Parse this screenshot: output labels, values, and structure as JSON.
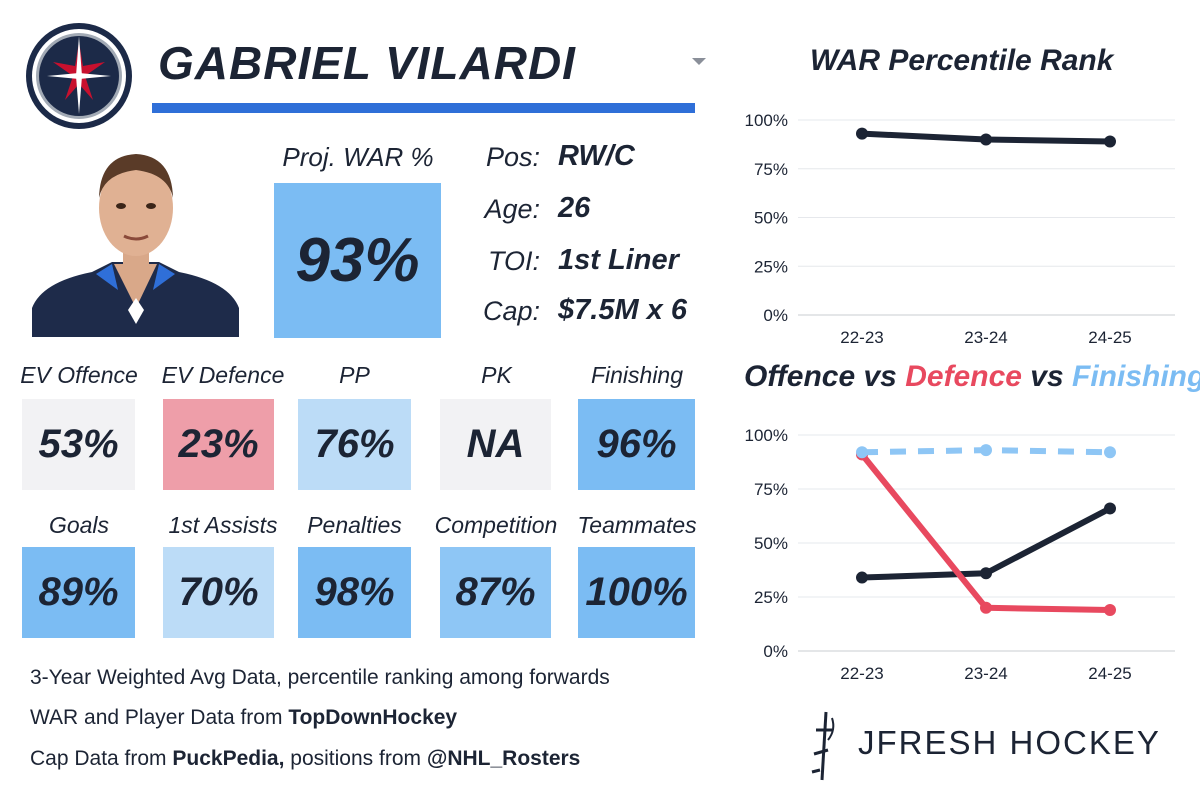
{
  "player": {
    "name": "GABRIEL VILARDI",
    "team_colors": {
      "navy": "#1c2a48",
      "blue": "#2f6fd8",
      "red": "#c8102e",
      "silver": "#a2aab5"
    }
  },
  "proj_war": {
    "label": "Proj. WAR %",
    "value": "93%",
    "color": "#7bbcf3"
  },
  "info": [
    {
      "label": "Pos:",
      "value": "RW/C"
    },
    {
      "label": "Age:",
      "value": "26"
    },
    {
      "label": "TOI:",
      "value": "1st Liner"
    },
    {
      "label": "Cap:",
      "value": "$7.5M x 6"
    }
  ],
  "stats_row1": [
    {
      "label": "EV Offence",
      "value": "53%",
      "color": "#f2f2f4"
    },
    {
      "label": "EV Defence",
      "value": "23%",
      "color": "#ee9ea9"
    },
    {
      "label": "PP",
      "value": "76%",
      "color": "#bcdcf7"
    },
    {
      "label": "PK",
      "value": "NA",
      "color": "#f2f2f4"
    },
    {
      "label": "Finishing",
      "value": "96%",
      "color": "#7bbcf3"
    }
  ],
  "stats_row2": [
    {
      "label": "Goals",
      "value": "89%",
      "color": "#7bbcf3"
    },
    {
      "label": "1st Assists",
      "value": "70%",
      "color": "#bcdcf7"
    },
    {
      "label": "Penalties",
      "value": "98%",
      "color": "#7bbcf3"
    },
    {
      "label": "Competition",
      "value": "87%",
      "color": "#8ec6f5"
    },
    {
      "label": "Teammates",
      "value": "100%",
      "color": "#7bbcf3"
    }
  ],
  "footer": {
    "line1": "3-Year Weighted Avg Data, percentile ranking among forwards",
    "line2_prefix": "WAR and Player Data from ",
    "line2_bold": "TopDownHockey",
    "line3_prefix": "Cap Data from ",
    "line3_bold1": "PuckPedia,",
    "line3_mid": " positions from ",
    "line3_bold2": "@NHL_Rosters"
  },
  "brand": {
    "text": "JFRESH HOCKEY"
  },
  "chart_data": [
    {
      "type": "line",
      "title": "WAR Percentile Rank",
      "categories": [
        "22-23",
        "23-24",
        "24-25"
      ],
      "ylim": [
        0,
        100
      ],
      "yticks": [
        0,
        25,
        50,
        75,
        100
      ],
      "ytick_labels": [
        "0%",
        "25%",
        "50%",
        "75%",
        "100%"
      ],
      "series": [
        {
          "name": "WAR",
          "values": [
            93,
            90,
            89
          ],
          "color": "#1c2434",
          "dashed": false
        }
      ]
    },
    {
      "type": "line",
      "title_parts": [
        {
          "text": "Offence",
          "color": "#1c2434"
        },
        {
          "text": "vs",
          "color": "#1c2434"
        },
        {
          "text": "Defence",
          "color": "#e8495f"
        },
        {
          "text": "vs",
          "color": "#1c2434"
        },
        {
          "text": "Finishing",
          "color": "#7bbcf3"
        }
      ],
      "categories": [
        "22-23",
        "23-24",
        "24-25"
      ],
      "ylim": [
        0,
        100
      ],
      "yticks": [
        0,
        25,
        50,
        75,
        100
      ],
      "ytick_labels": [
        "0%",
        "25%",
        "50%",
        "75%",
        "100%"
      ],
      "series": [
        {
          "name": "Offence",
          "values": [
            34,
            36,
            66
          ],
          "color": "#1c2434",
          "dashed": false
        },
        {
          "name": "Defence",
          "values": [
            91,
            20,
            19
          ],
          "color": "#e8495f",
          "dashed": false
        },
        {
          "name": "Finishing",
          "values": [
            92,
            93,
            92
          ],
          "color": "#8ec6f5",
          "dashed": true
        }
      ]
    }
  ]
}
